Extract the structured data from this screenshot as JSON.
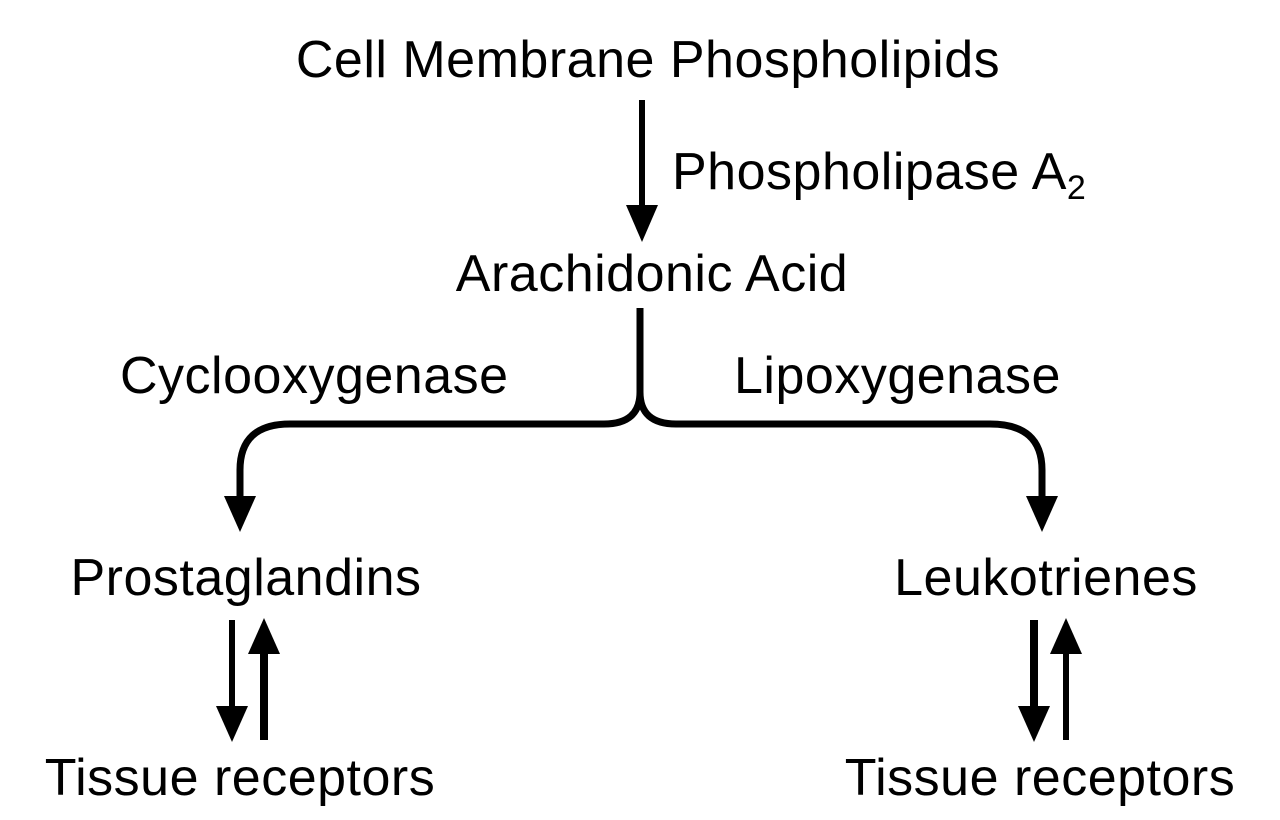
{
  "nodes": {
    "membrane": "Cell Membrane Phospholipids",
    "arachidonic": "Arachidonic Acid",
    "prostaglandins": "Prostaglandins",
    "leukotrienes": "Leukotrienes",
    "tissue_left": "Tissue receptors",
    "tissue_right": "Tissue receptors"
  },
  "enzymes": {
    "phospholipase": "Phospholipase A",
    "phospholipase_sub": "2",
    "cyclooxygenase": "Cyclooxygenase",
    "lipoxygenase": "Lipoxygenase"
  },
  "colors": {
    "ink": "#000000",
    "background": "#ffffff"
  }
}
